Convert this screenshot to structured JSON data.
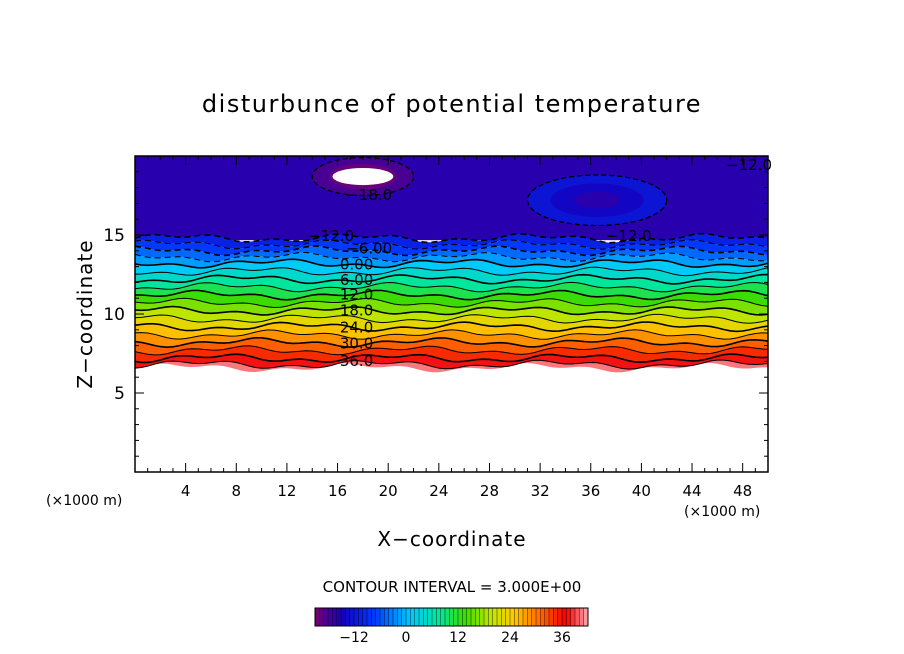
{
  "chart_data": {
    "type": "heatmap",
    "subtype": "filled-contour",
    "title": "disturbunce of potential temperature",
    "xlabel": "X−coordinate",
    "ylabel": "Z−coordinate",
    "x_unit_left": "(×1000 m)",
    "x_unit_right": "(×1000 m)",
    "xlim": [
      0,
      50
    ],
    "ylim": [
      0,
      20
    ],
    "x_ticks": [
      4,
      8,
      12,
      16,
      20,
      24,
      28,
      32,
      36,
      40,
      44,
      48
    ],
    "x_tick_labels": [
      "4",
      "8",
      "12",
      "16",
      "20",
      "24",
      "28",
      "32",
      "36",
      "40",
      "44",
      "48"
    ],
    "y_ticks": [
      5,
      10,
      15
    ],
    "y_tick_labels": [
      "5",
      "10",
      "15"
    ],
    "contour_interval_text": "CONTOUR INTERVAL = 3.000E+00",
    "contour_interval": 3,
    "colorbar": {
      "min": -21,
      "max": 42,
      "ticks": [
        -12,
        0,
        12,
        24,
        36
      ],
      "tick_labels": [
        "−12",
        "0",
        "12",
        "24",
        "36"
      ]
    },
    "data_bottom_z": 6.6,
    "contours": [
      {
        "value": -12,
        "z": 14.8
      },
      {
        "value": -9,
        "z": 14.4
      },
      {
        "value": -6,
        "z": 14.0
      },
      {
        "value": -3,
        "z": 13.6
      },
      {
        "value": 0,
        "z": 13.2
      },
      {
        "value": 3,
        "z": 12.7
      },
      {
        "value": 6,
        "z": 12.2
      },
      {
        "value": 9,
        "z": 11.7
      },
      {
        "value": 12,
        "z": 11.2
      },
      {
        "value": 15,
        "z": 10.7
      },
      {
        "value": 18,
        "z": 10.2
      },
      {
        "value": 21,
        "z": 9.7
      },
      {
        "value": 24,
        "z": 9.2
      },
      {
        "value": 27,
        "z": 8.7
      },
      {
        "value": 30,
        "z": 8.2
      },
      {
        "value": 33,
        "z": 7.7
      },
      {
        "value": 36,
        "z": 7.2
      },
      {
        "value": 39,
        "z": 6.8
      }
    ],
    "contour_labels": [
      {
        "text": "−12.0",
        "x": 48.5,
        "z": 19.5
      },
      {
        "text": "−18.0",
        "x": 18.5,
        "z": 17.6
      },
      {
        "text": "−12.0",
        "x": 15.5,
        "z": 15.0
      },
      {
        "text": "−12.0",
        "x": 39.0,
        "z": 15.0
      },
      {
        "text": "−6.00",
        "x": 18.5,
        "z": 14.2
      },
      {
        "text": "0.00",
        "x": 17.5,
        "z": 13.2
      },
      {
        "text": "6.00",
        "x": 17.5,
        "z": 12.2
      },
      {
        "text": "12.0",
        "x": 17.5,
        "z": 11.3
      },
      {
        "text": "18.0",
        "x": 17.5,
        "z": 10.3
      },
      {
        "text": "24.0",
        "x": 17.5,
        "z": 9.2
      },
      {
        "text": "30.0",
        "x": 17.5,
        "z": 8.2
      },
      {
        "text": "36.0",
        "x": 17.5,
        "z": 7.1
      }
    ],
    "extrema": [
      {
        "x": 18.0,
        "z": 18.7,
        "value": -24,
        "rx": 4.0,
        "rz": 0.6
      },
      {
        "x": 36.5,
        "z": 17.2,
        "value": -18,
        "rx": 5.5,
        "rz": 0.8
      }
    ]
  }
}
